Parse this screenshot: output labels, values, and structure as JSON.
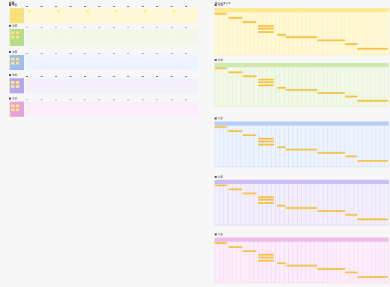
{
  "plan": {
    "title": "計画",
    "sections": [
      {
        "label": "年度"
      },
      {
        "label": "年度"
      },
      {
        "label": "年度"
      },
      {
        "label": "年度"
      },
      {
        "label": "年度"
      }
    ]
  },
  "timeline": {
    "title": "タイムライン",
    "sections": [
      {
        "label": "年度"
      },
      {
        "label": "年度"
      },
      {
        "label": "年度"
      },
      {
        "label": "年度"
      },
      {
        "label": "年度"
      }
    ]
  }
}
